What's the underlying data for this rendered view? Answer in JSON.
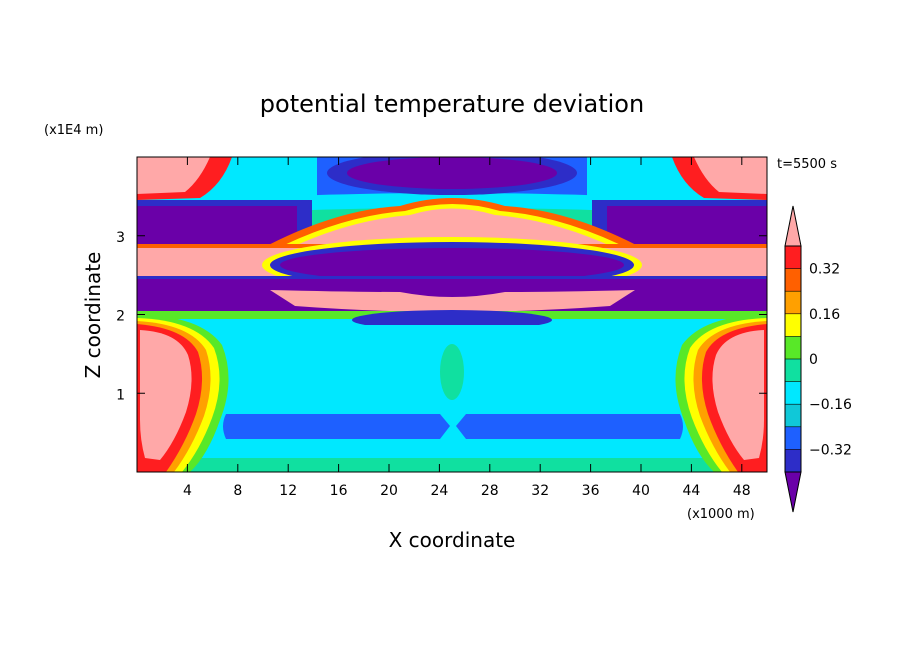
{
  "chart_data": {
    "type": "heatmap",
    "title": "potential temperature deviation",
    "xlabel": "X coordinate",
    "ylabel": "Z coordinate",
    "x_unit": "(x1000 m)",
    "y_unit": "(x1E4 m)",
    "time_label": "t=5500 s",
    "xlim": [
      0,
      50
    ],
    "ylim": [
      0,
      4
    ],
    "x_ticks": [
      "4",
      "8",
      "12",
      "16",
      "20",
      "24",
      "28",
      "32",
      "36",
      "40",
      "44",
      "48"
    ],
    "x_tick_values": [
      4,
      8,
      12,
      16,
      20,
      24,
      28,
      32,
      36,
      40,
      44,
      48
    ],
    "y_ticks": [
      "1",
      "2",
      "3"
    ],
    "y_tick_values": [
      1,
      2,
      3
    ],
    "colorbar": {
      "levels": [
        -0.4,
        -0.32,
        -0.24,
        -0.16,
        -0.08,
        0,
        0.08,
        0.16,
        0.24,
        0.32,
        0.4
      ],
      "labels": [
        "0.32",
        "0.16",
        "0",
        "−0.16",
        "−0.32"
      ],
      "label_values": [
        0.32,
        0.16,
        0,
        -0.16,
        -0.32
      ],
      "colors": [
        "#6a00a8",
        "#2d2dc8",
        "#1e60ff",
        "#10c8d8",
        "#00e8ff",
        "#10e0a0",
        "#58e828",
        "#ffff00",
        "#ffa000",
        "#ff6000",
        "#ff1e20",
        "#ffa8a8"
      ]
    },
    "contour_fills": [
      {
        "name": "lower-left-plume",
        "color": "#ffa8a8"
      },
      {
        "name": "lower-right-plume",
        "color": "#ffa8a8"
      },
      {
        "name": "lower-blue-band-left",
        "color": "#1e60ff"
      },
      {
        "name": "lower-blue-band-right",
        "color": "#1e60ff"
      },
      {
        "name": "layer-purple-z2.2",
        "color": "#6a00a8"
      },
      {
        "name": "layer-pink-z2.6",
        "color": "#ffa8a8"
      },
      {
        "name": "layer-purple-z3.3",
        "color": "#6a00a8"
      },
      {
        "name": "top-purple-cap",
        "color": "#6a00a8"
      }
    ]
  }
}
